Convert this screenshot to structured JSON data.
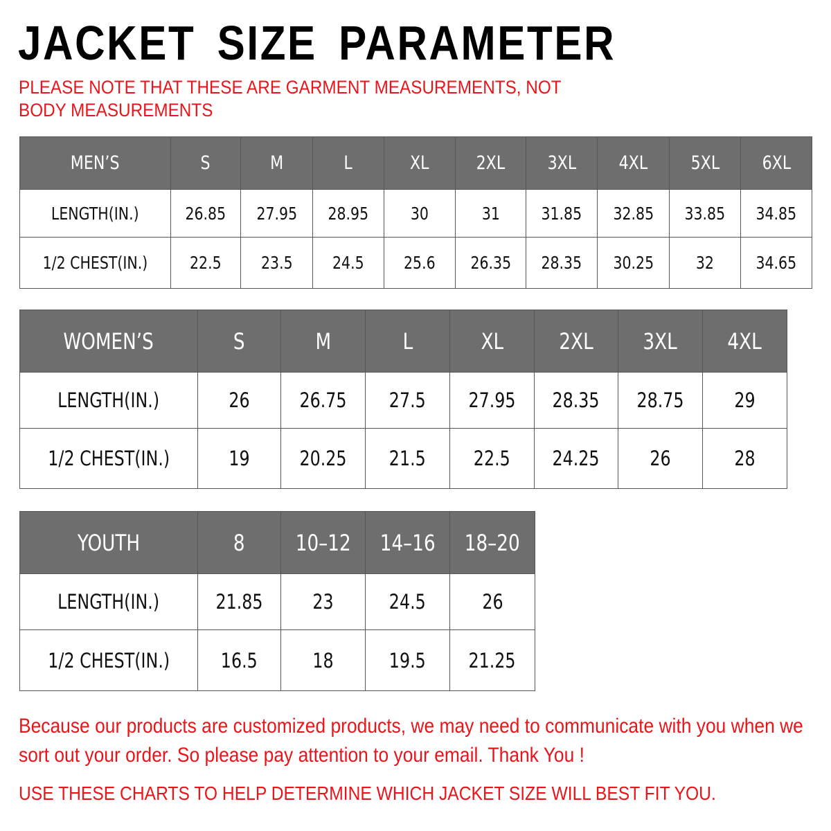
{
  "title": "JACKET SIZE PARAMETER",
  "note": "PLEASE NOTE THAT THESE ARE GARMENT MEASUREMENTS, NOT BODY MEASUREMENTS",
  "colors": {
    "header_bg": "#6e6e6e",
    "accent_red": "#e8151b"
  },
  "tables": {
    "men": {
      "header": [
        "MEN’S",
        "S",
        "M",
        "L",
        "XL",
        "2XL",
        "3XL",
        "4XL",
        "5XL",
        "6XL"
      ],
      "rows": [
        [
          "LENGTH(IN.)",
          "26.85",
          "27.95",
          "28.95",
          "30",
          "31",
          "31.85",
          "32.85",
          "33.85",
          "34.85"
        ],
        [
          "1/2 CHEST(IN.)",
          "22.5",
          "23.5",
          "24.5",
          "25.6",
          "26.35",
          "28.35",
          "30.25",
          "32",
          "34.65"
        ]
      ]
    },
    "women": {
      "header": [
        "WOMEN’S",
        "S",
        "M",
        "L",
        "XL",
        "2XL",
        "3XL",
        "4XL"
      ],
      "rows": [
        [
          "LENGTH(IN.)",
          "26",
          "26.75",
          "27.5",
          "27.95",
          "28.35",
          "28.75",
          "29"
        ],
        [
          "1/2 CHEST(IN.)",
          "19",
          "20.25",
          "21.5",
          "22.5",
          "24.25",
          "26",
          "28"
        ]
      ]
    },
    "youth": {
      "header": [
        "YOUTH",
        "8",
        "10–12",
        "14–16",
        "18–20"
      ],
      "rows": [
        [
          "LENGTH(IN.)",
          "21.85",
          "23",
          "24.5",
          "26"
        ],
        [
          "1/2 CHEST(IN.)",
          "16.5",
          "18",
          "19.5",
          "21.25"
        ]
      ]
    }
  },
  "paragraph": "Because our products are customized products, we may need to communicate with you when we sort out your order. So please pay attention to your email. Thank You !",
  "footer": "USE THESE CHARTS TO HELP DETERMINE WHICH JACKET SIZE WILL BEST FIT YOU."
}
